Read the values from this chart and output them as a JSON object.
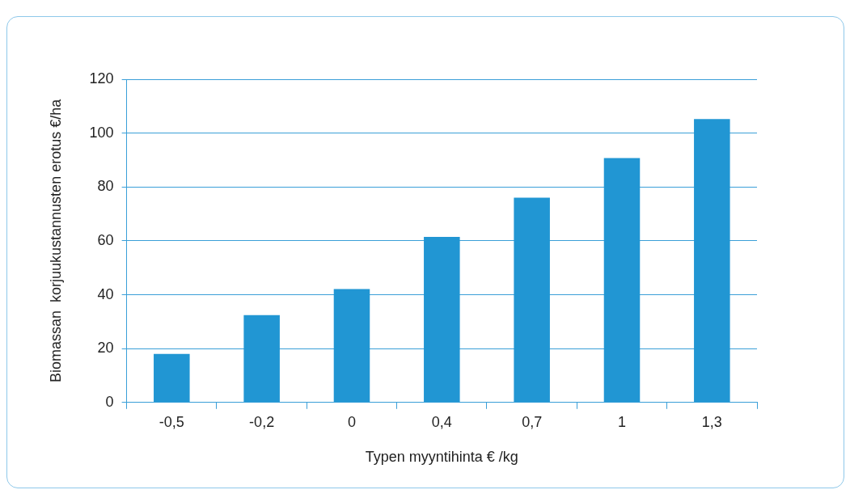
{
  "chart_data": {
    "type": "bar",
    "xlabel": "Typen myyntihinta € /kg",
    "ylabel": "Biomassan  korjuukustannusten erotus €/ha",
    "categories": [
      "-0,5",
      "-0,2",
      "0",
      "0,4",
      "0,7",
      "1",
      "1,3"
    ],
    "values": [
      18,
      32.4,
      42.1,
      61.5,
      76,
      90.7,
      105.2
    ],
    "color": "#2196d3",
    "ylim": [
      0,
      120
    ],
    "yticks": [
      0,
      20,
      40,
      60,
      80,
      100,
      120
    ],
    "grid": "y"
  }
}
